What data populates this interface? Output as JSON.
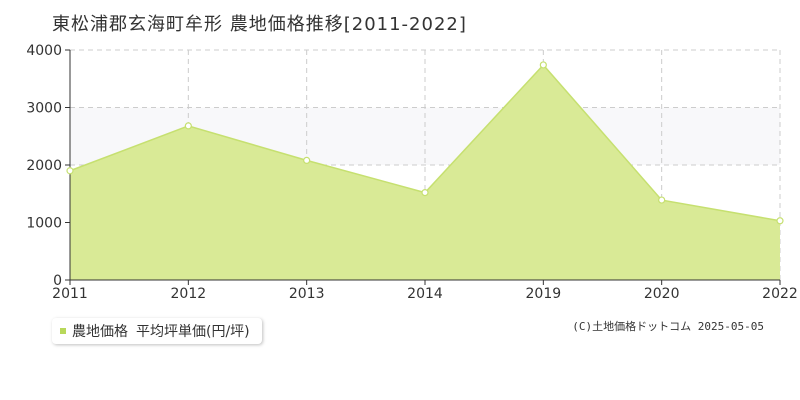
{
  "title": "東松浦郡玄海町牟形 農地価格推移[2011-2022]",
  "chart_data": {
    "type": "area",
    "x": [
      "2011",
      "2012",
      "2013",
      "2014",
      "2019",
      "2020",
      "2022"
    ],
    "series": [
      {
        "name": "農地価格 平均坪単価(円/坪)",
        "values": [
          1900,
          2680,
          2080,
          1520,
          3740,
          1390,
          1030
        ]
      }
    ],
    "ylim": [
      0,
      4000
    ],
    "yticks": [
      "0",
      "1000",
      "2000",
      "3000",
      "4000"
    ],
    "grid": true,
    "legend": "bottom-left",
    "colors": {
      "fill": "#d9ea96",
      "line": "#c6e070",
      "marker_fill": "#ffffff",
      "band": "#f8f8fa",
      "grid": "#cccccc"
    }
  },
  "legend": {
    "label": "農地価格",
    "unit": "平均坪単価(円/坪)"
  },
  "copyright": "(C)土地価格ドットコム 2025-05-05"
}
